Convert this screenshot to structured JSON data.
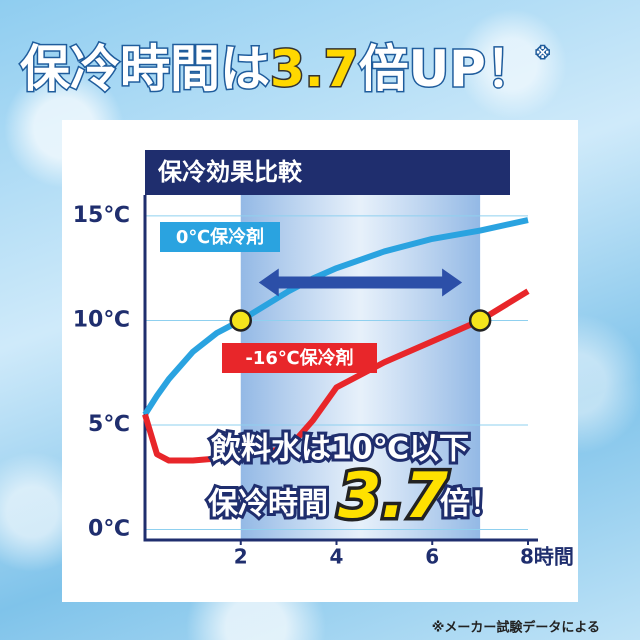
{
  "chart_data": {
    "type": "line",
    "title_parts": [
      "保冷時間は",
      "3.7",
      "倍UP！",
      "※"
    ],
    "subtitle": "保冷効果比較",
    "footnote": "※メーカー試験データによる",
    "xlim": [
      0,
      8
    ],
    "ylim": [
      -0.5,
      16
    ],
    "xticks": [
      2,
      4,
      6,
      {
        "value": 8,
        "label": "8時間"
      }
    ],
    "yticks": [
      {
        "value": 0,
        "label": "0℃"
      },
      {
        "value": 5,
        "label": "5℃"
      },
      {
        "value": 10,
        "label": "10℃"
      },
      {
        "value": 15,
        "label": "15℃"
      }
    ],
    "grid": true,
    "highlight": [
      2,
      7
    ],
    "x": [
      0,
      0.25,
      0.5,
      1,
      1.5,
      2,
      3,
      3.5,
      4,
      5,
      6,
      7,
      8
    ],
    "series": [
      {
        "name": "0℃保冷剤",
        "color": "#2aa3e0",
        "values": [
          5.5,
          6.4,
          7.2,
          8.5,
          9.4,
          10,
          11.4,
          12,
          12.5,
          13.3,
          13.9,
          14.3,
          14.8
        ]
      },
      {
        "name": "-16℃保冷剤",
        "color": "#e8262a",
        "values": [
          5.5,
          3.6,
          3.3,
          3.3,
          3.4,
          3.5,
          3.9,
          5.2,
          6.8,
          8,
          9,
          10,
          11.4
        ]
      }
    ],
    "markers": {
      "x": [
        2,
        7
      ],
      "y": [
        10,
        10
      ],
      "color": "#f4e41c"
    },
    "annotation": {
      "line1": "飲料水は10℃以下",
      "line2a": "保冷時間",
      "line2b": "3.7",
      "line2c": "倍！"
    }
  }
}
